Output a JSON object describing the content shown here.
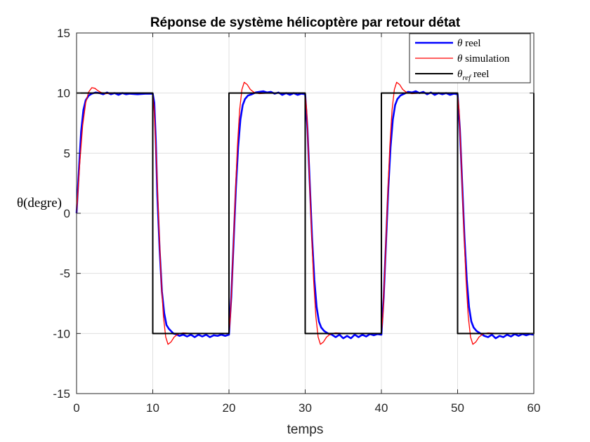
{
  "chart_data": {
    "type": "line",
    "title": "Réponse de système hélicoptère par retour détat",
    "xlabel": "temps",
    "ylabel": "θ(degre)",
    "xlim": [
      0,
      60
    ],
    "ylim": [
      -15,
      15
    ],
    "xticks": [
      "0",
      "10",
      "20",
      "30",
      "40",
      "50",
      "60"
    ],
    "yticks": [
      "15",
      "10",
      "5",
      "0",
      "-5",
      "-10",
      "-15"
    ],
    "grid": true,
    "legend_position": "top-right",
    "series": [
      {
        "name": "θ reel",
        "label_parts": {
          "symbol": "θ",
          "sub": "",
          "text": " reel"
        },
        "color": "#0000ff",
        "width": 2.6,
        "points": [
          [
            0,
            0
          ],
          [
            0.3,
            3.5
          ],
          [
            0.6,
            6.8
          ],
          [
            0.9,
            8.6
          ],
          [
            1.2,
            9.4
          ],
          [
            1.6,
            9.8
          ],
          [
            2.0,
            9.95
          ],
          [
            2.5,
            10.05
          ],
          [
            3.0,
            10.0
          ],
          [
            3.5,
            9.9
          ],
          [
            4.0,
            10.05
          ],
          [
            4.5,
            9.9
          ],
          [
            5.0,
            10.0
          ],
          [
            5.5,
            9.85
          ],
          [
            6.0,
            10.0
          ],
          [
            6.5,
            9.9
          ],
          [
            7.0,
            9.95
          ],
          [
            8.0,
            9.9
          ],
          [
            9.0,
            9.95
          ],
          [
            10.0,
            9.95
          ],
          [
            10.2,
            9.2
          ],
          [
            10.4,
            6.0
          ],
          [
            10.6,
            1.5
          ],
          [
            10.9,
            -3.0
          ],
          [
            11.2,
            -6.5
          ],
          [
            11.5,
            -8.3
          ],
          [
            11.8,
            -9.3
          ],
          [
            12.1,
            -9.6
          ],
          [
            12.4,
            -9.8
          ],
          [
            12.7,
            -10.0
          ],
          [
            13.0,
            -10.05
          ],
          [
            13.5,
            -10.2
          ],
          [
            14.0,
            -10.1
          ],
          [
            14.5,
            -10.25
          ],
          [
            15.0,
            -10.1
          ],
          [
            15.5,
            -10.3
          ],
          [
            16.0,
            -10.1
          ],
          [
            16.5,
            -10.25
          ],
          [
            17.0,
            -10.1
          ],
          [
            17.5,
            -10.3
          ],
          [
            18.0,
            -10.15
          ],
          [
            18.5,
            -10.2
          ],
          [
            19.0,
            -10.1
          ],
          [
            19.5,
            -10.2
          ],
          [
            20.0,
            -10.1
          ],
          [
            20.3,
            -7.0
          ],
          [
            20.6,
            -2.5
          ],
          [
            20.9,
            2.0
          ],
          [
            21.2,
            5.5
          ],
          [
            21.5,
            7.8
          ],
          [
            21.8,
            9.0
          ],
          [
            22.1,
            9.5
          ],
          [
            22.5,
            9.8
          ],
          [
            23.0,
            9.9
          ],
          [
            23.5,
            10.05
          ],
          [
            24.0,
            10.1
          ],
          [
            24.5,
            10.15
          ],
          [
            25.0,
            10.05
          ],
          [
            25.5,
            10.1
          ],
          [
            26.0,
            9.95
          ],
          [
            26.5,
            10.05
          ],
          [
            27.0,
            9.85
          ],
          [
            27.5,
            10.0
          ],
          [
            28.0,
            9.85
          ],
          [
            28.5,
            10.0
          ],
          [
            29.0,
            9.85
          ],
          [
            29.5,
            9.95
          ],
          [
            30.0,
            9.9
          ],
          [
            30.3,
            7.0
          ],
          [
            30.6,
            2.5
          ],
          [
            30.9,
            -2.0
          ],
          [
            31.2,
            -5.5
          ],
          [
            31.5,
            -7.8
          ],
          [
            31.8,
            -9.0
          ],
          [
            32.1,
            -9.5
          ],
          [
            32.5,
            -9.8
          ],
          [
            33.0,
            -10.0
          ],
          [
            33.5,
            -10.1
          ],
          [
            34.0,
            -10.3
          ],
          [
            34.5,
            -10.1
          ],
          [
            35.0,
            -10.4
          ],
          [
            35.5,
            -10.2
          ],
          [
            36.0,
            -10.4
          ],
          [
            36.5,
            -10.1
          ],
          [
            37.0,
            -10.3
          ],
          [
            37.5,
            -10.1
          ],
          [
            38.0,
            -10.25
          ],
          [
            38.5,
            -10.05
          ],
          [
            39.0,
            -10.15
          ],
          [
            39.5,
            -10.05
          ],
          [
            40.0,
            -10.1
          ],
          [
            40.3,
            -7.0
          ],
          [
            40.6,
            -2.5
          ],
          [
            40.9,
            2.0
          ],
          [
            41.2,
            5.5
          ],
          [
            41.5,
            7.8
          ],
          [
            41.8,
            9.0
          ],
          [
            42.1,
            9.5
          ],
          [
            42.5,
            9.8
          ],
          [
            43.0,
            9.95
          ],
          [
            43.5,
            10.1
          ],
          [
            44.0,
            10.05
          ],
          [
            44.5,
            10.15
          ],
          [
            45.0,
            10.0
          ],
          [
            45.5,
            10.1
          ],
          [
            46.0,
            9.9
          ],
          [
            46.5,
            10.05
          ],
          [
            47.0,
            9.85
          ],
          [
            47.5,
            10.0
          ],
          [
            48.0,
            9.9
          ],
          [
            48.5,
            10.0
          ],
          [
            49.0,
            9.85
          ],
          [
            49.5,
            9.95
          ],
          [
            50.0,
            9.9
          ],
          [
            50.3,
            7.0
          ],
          [
            50.6,
            2.5
          ],
          [
            50.9,
            -2.0
          ],
          [
            51.2,
            -5.5
          ],
          [
            51.5,
            -7.8
          ],
          [
            51.8,
            -9.0
          ],
          [
            52.1,
            -9.5
          ],
          [
            52.5,
            -9.8
          ],
          [
            53.0,
            -10.0
          ],
          [
            53.5,
            -10.2
          ],
          [
            54.0,
            -10.3
          ],
          [
            54.5,
            -10.1
          ],
          [
            55.0,
            -10.4
          ],
          [
            55.5,
            -10.2
          ],
          [
            56.0,
            -10.3
          ],
          [
            56.5,
            -10.1
          ],
          [
            57.0,
            -10.25
          ],
          [
            57.5,
            -10.05
          ],
          [
            58.0,
            -10.2
          ],
          [
            58.5,
            -10.05
          ],
          [
            59.0,
            -10.15
          ],
          [
            59.5,
            -10.05
          ],
          [
            60.0,
            -10.1
          ]
        ]
      },
      {
        "name": "θ simulation",
        "label_parts": {
          "symbol": "θ",
          "sub": "",
          "text": " simulation"
        },
        "color": "#ff0000",
        "width": 1.3,
        "points": [
          [
            0,
            0
          ],
          [
            0.4,
            4.0
          ],
          [
            0.8,
            7.3
          ],
          [
            1.2,
            9.2
          ],
          [
            1.6,
            10.1
          ],
          [
            2.0,
            10.45
          ],
          [
            2.4,
            10.4
          ],
          [
            2.8,
            10.2
          ],
          [
            3.2,
            10.05
          ],
          [
            3.8,
            9.95
          ],
          [
            5.0,
            10.0
          ],
          [
            10.0,
            10.0
          ],
          [
            10.2,
            8.5
          ],
          [
            10.5,
            4.0
          ],
          [
            10.8,
            -1.0
          ],
          [
            11.1,
            -5.5
          ],
          [
            11.4,
            -8.6
          ],
          [
            11.7,
            -10.3
          ],
          [
            12.0,
            -10.9
          ],
          [
            12.4,
            -10.7
          ],
          [
            12.8,
            -10.3
          ],
          [
            13.3,
            -10.05
          ],
          [
            14.0,
            -9.95
          ],
          [
            15.0,
            -10.0
          ],
          [
            20.0,
            -10.0
          ],
          [
            20.2,
            -8.5
          ],
          [
            20.5,
            -4.0
          ],
          [
            20.8,
            1.0
          ],
          [
            21.1,
            5.5
          ],
          [
            21.4,
            8.6
          ],
          [
            21.7,
            10.3
          ],
          [
            22.0,
            10.9
          ],
          [
            22.4,
            10.7
          ],
          [
            22.8,
            10.3
          ],
          [
            23.3,
            10.05
          ],
          [
            24.0,
            9.95
          ],
          [
            25.0,
            10.0
          ],
          [
            30.0,
            10.0
          ],
          [
            30.2,
            8.5
          ],
          [
            30.5,
            4.0
          ],
          [
            30.8,
            -1.0
          ],
          [
            31.1,
            -5.5
          ],
          [
            31.4,
            -8.6
          ],
          [
            31.7,
            -10.3
          ],
          [
            32.0,
            -10.9
          ],
          [
            32.4,
            -10.7
          ],
          [
            32.8,
            -10.3
          ],
          [
            33.3,
            -10.05
          ],
          [
            34.0,
            -9.95
          ],
          [
            35.0,
            -10.0
          ],
          [
            40.0,
            -10.0
          ],
          [
            40.2,
            -8.5
          ],
          [
            40.5,
            -4.0
          ],
          [
            40.8,
            1.0
          ],
          [
            41.1,
            5.5
          ],
          [
            41.4,
            8.6
          ],
          [
            41.7,
            10.3
          ],
          [
            42.0,
            10.9
          ],
          [
            42.4,
            10.7
          ],
          [
            42.8,
            10.3
          ],
          [
            43.3,
            10.05
          ],
          [
            44.0,
            9.95
          ],
          [
            45.0,
            10.0
          ],
          [
            50.0,
            10.0
          ],
          [
            50.2,
            8.5
          ],
          [
            50.5,
            4.0
          ],
          [
            50.8,
            -1.0
          ],
          [
            51.1,
            -5.5
          ],
          [
            51.4,
            -8.6
          ],
          [
            51.7,
            -10.3
          ],
          [
            52.0,
            -10.9
          ],
          [
            52.4,
            -10.7
          ],
          [
            52.8,
            -10.3
          ],
          [
            53.3,
            -10.05
          ],
          [
            54.0,
            -9.95
          ],
          [
            55.0,
            -10.0
          ],
          [
            60.0,
            -10.0
          ]
        ]
      },
      {
        "name": "θref reel",
        "label_parts": {
          "symbol": "θ",
          "sub": "ref",
          "text": " reel"
        },
        "color": "#000000",
        "width": 2.0,
        "points": [
          [
            0,
            10
          ],
          [
            10,
            10
          ],
          [
            10,
            -10
          ],
          [
            20,
            -10
          ],
          [
            20,
            10
          ],
          [
            30,
            10
          ],
          [
            30,
            -10
          ],
          [
            40,
            -10
          ],
          [
            40,
            10
          ],
          [
            50,
            10
          ],
          [
            50,
            -10
          ],
          [
            60,
            -10
          ],
          [
            60,
            10
          ]
        ]
      }
    ]
  }
}
